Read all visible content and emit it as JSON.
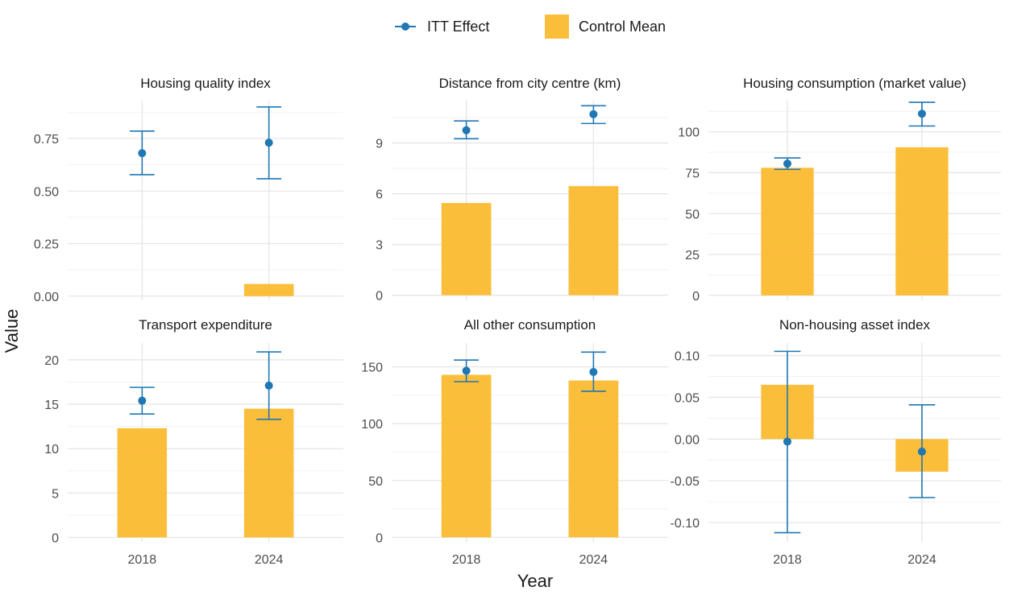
{
  "legend": {
    "itt_label": "ITT Effect",
    "control_label": "Control Mean"
  },
  "colors": {
    "itt": "#1f77b4",
    "control": "#fbb92a",
    "grid_major": "#e6e6e6",
    "grid_minor": "#f2f2f2"
  },
  "chart_data": {
    "type": "bar",
    "xlabel": "Year",
    "ylabel": "Value",
    "categories": [
      "2018",
      "2024"
    ],
    "panels": [
      {
        "title": "Housing quality index",
        "ylim": [
          -0.02,
          0.93
        ],
        "yticks": [
          0.0,
          0.25,
          0.5,
          0.75
        ],
        "ytick_labels": [
          "0.00",
          "0.25",
          "0.50",
          "0.75"
        ],
        "control_mean": [
          0.0,
          0.058
        ],
        "itt": [
          0.68,
          0.73
        ],
        "itt_low": [
          0.578,
          0.558
        ],
        "itt_high": [
          0.785,
          0.9
        ]
      },
      {
        "title": "Distance from city centre (km)",
        "ylim": [
          -0.3,
          11.5
        ],
        "yticks": [
          0,
          3,
          6,
          9
        ],
        "ytick_labels": [
          "0",
          "3",
          "6",
          "9"
        ],
        "control_mean": [
          5.45,
          6.45
        ],
        "itt": [
          9.75,
          10.7
        ],
        "itt_low": [
          9.25,
          10.15
        ],
        "itt_high": [
          10.3,
          11.2
        ]
      },
      {
        "title": "Housing consumption (market value)",
        "ylim": [
          -3,
          119
        ],
        "yticks": [
          0,
          25,
          50,
          75,
          100
        ],
        "ytick_labels": [
          "0",
          "25",
          "50",
          "75",
          "100"
        ],
        "control_mean": [
          78,
          90.5
        ],
        "itt": [
          80.5,
          111
        ],
        "itt_low": [
          77,
          103.5
        ],
        "itt_high": [
          84,
          118
        ]
      },
      {
        "title": "Transport expenditure",
        "ylim": [
          -0.5,
          21.9
        ],
        "yticks": [
          0,
          5,
          10,
          15,
          20
        ],
        "ytick_labels": [
          "0",
          "5",
          "10",
          "15",
          "20"
        ],
        "control_mean": [
          12.3,
          14.5
        ],
        "itt": [
          15.4,
          17.1
        ],
        "itt_low": [
          13.9,
          13.3
        ],
        "itt_high": [
          16.9,
          20.9
        ]
      },
      {
        "title": "All other consumption",
        "ylim": [
          -4,
          171
        ],
        "yticks": [
          0,
          50,
          100,
          150
        ],
        "ytick_labels": [
          "0",
          "50",
          "100",
          "150"
        ],
        "control_mean": [
          143,
          138
        ],
        "itt": [
          146.5,
          145.5
        ],
        "itt_low": [
          137,
          128.5
        ],
        "itt_high": [
          156,
          163
        ]
      },
      {
        "title": "Non-housing asset index",
        "ylim": [
          -0.123,
          0.115
        ],
        "yticks": [
          -0.1,
          -0.05,
          0.0,
          0.05,
          0.1
        ],
        "ytick_labels": [
          "-0.10",
          "-0.05",
          "0.00",
          "0.05",
          "0.10"
        ],
        "control_mean": [
          0.065,
          -0.039
        ],
        "itt": [
          -0.003,
          -0.015
        ],
        "itt_low": [
          -0.112,
          -0.07
        ],
        "itt_high": [
          0.105,
          0.041
        ]
      }
    ]
  }
}
